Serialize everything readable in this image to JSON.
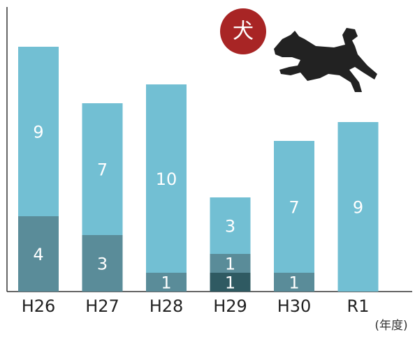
{
  "chart_data": {
    "type": "stacked_bar",
    "categories": [
      "H26",
      "H27",
      "H28",
      "H29",
      "H30",
      "R1"
    ],
    "series": [
      {
        "color": "#2f5a62",
        "values": [
          null,
          null,
          null,
          1,
          null,
          null
        ]
      },
      {
        "color": "#5a8c99",
        "values": [
          4,
          3,
          1,
          1,
          1,
          null
        ]
      },
      {
        "color": "#72bfd3",
        "values": [
          9,
          7,
          10,
          3,
          7,
          9
        ]
      }
    ],
    "ylim": [
      0,
      15
    ],
    "x_label": "(年度)",
    "annotation": "犬"
  }
}
